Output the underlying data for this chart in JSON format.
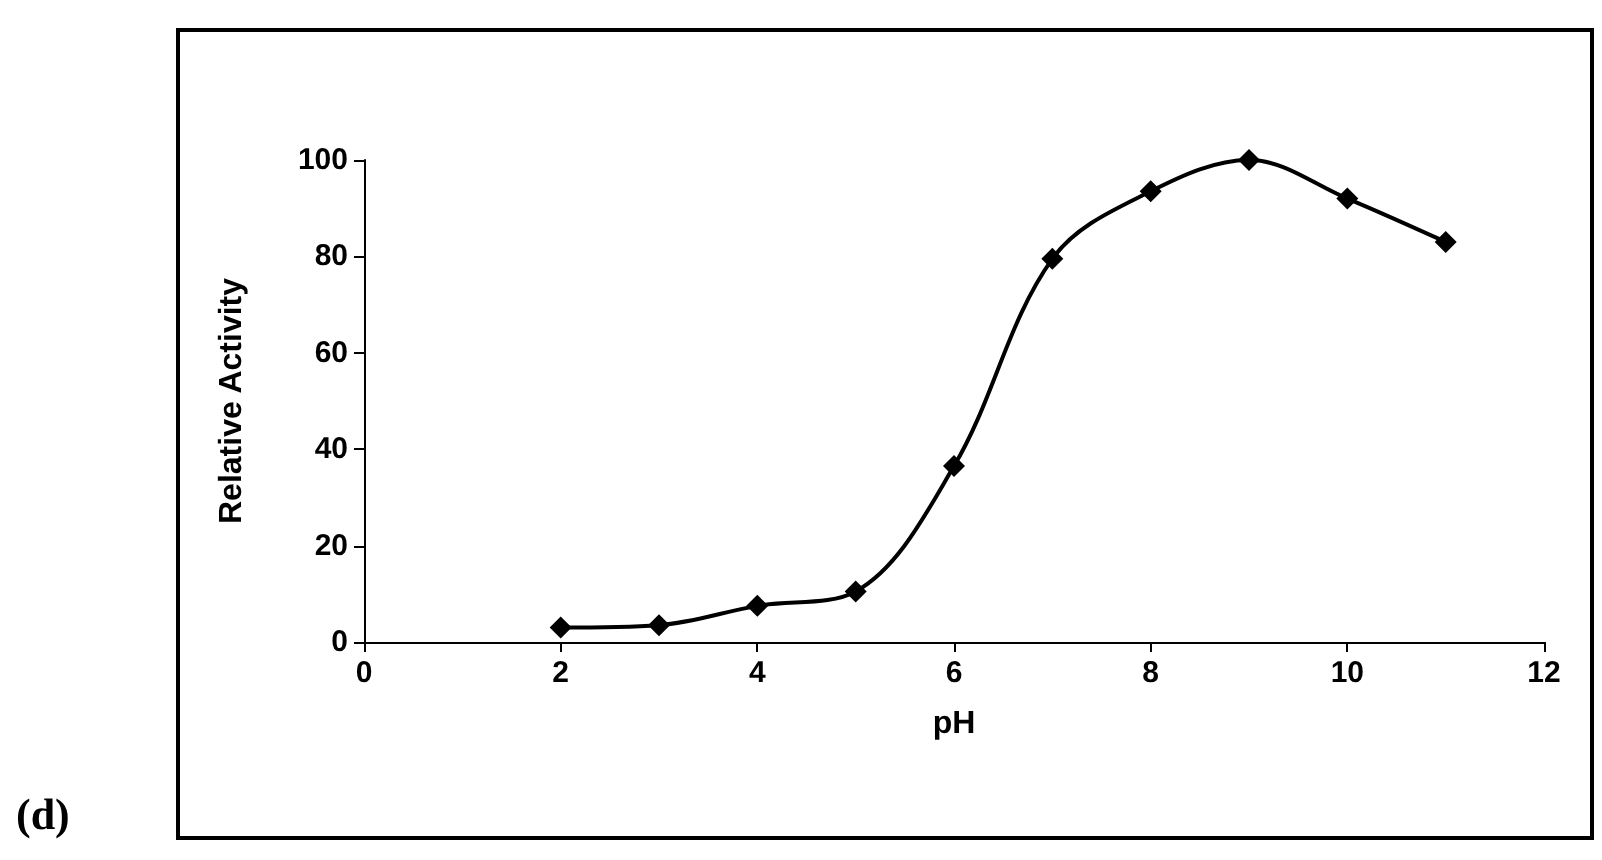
{
  "chart_data": {
    "type": "line",
    "xlabel": "pH",
    "ylabel": "Relative Activity",
    "x": [
      2,
      3,
      4,
      5,
      6,
      7,
      8,
      9,
      10,
      11
    ],
    "series": [
      {
        "color": "#000000",
        "values": [
          3,
          3.5,
          7.5,
          10.5,
          36.5,
          79.5,
          93.5,
          100,
          92,
          83
        ]
      }
    ],
    "xlim": [
      0,
      12
    ],
    "xticks": [
      0,
      2,
      4,
      6,
      8,
      10,
      12
    ],
    "ylim": [
      0,
      100
    ],
    "yticks": [
      0,
      20,
      40,
      60,
      80,
      100
    ],
    "marker": "diamond",
    "line_style": "solid",
    "annotations": [
      "(d)"
    ]
  }
}
